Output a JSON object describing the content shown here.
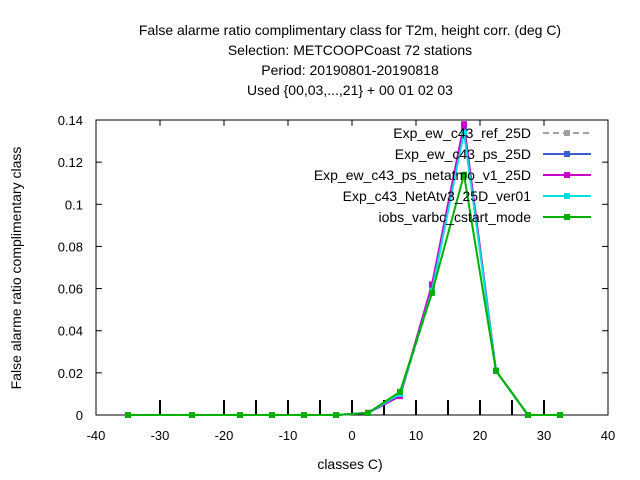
{
  "chart_data": {
    "type": "line",
    "title_lines": [
      "False alarme ratio complimentary class  for T2m, height corr. (deg C)",
      "Selection: METCOOPCoast     72 stations",
      "Period: 20190801-20190818",
      "Used {00,03,...,21} + 00 01 02 03"
    ],
    "xlabel": "classes C)",
    "ylabel": "False alarme ratio complimentary class",
    "xlim": [
      -40,
      40
    ],
    "ylim": [
      0,
      0.14
    ],
    "xticks": [
      -40,
      -30,
      -20,
      -10,
      0,
      10,
      20,
      30,
      40
    ],
    "yticks": [
      0,
      0.02,
      0.04,
      0.06,
      0.08,
      0.1,
      0.12,
      0.14
    ],
    "xtick_labels": [
      "-40",
      "-30",
      "-20",
      "-10",
      "0",
      "10",
      "20",
      "30",
      "40"
    ],
    "ytick_labels": [
      "0",
      "0.02",
      "0.04",
      "0.06",
      "0.08",
      "0.1",
      "0.12",
      "0.14"
    ],
    "class_boundaries": [
      -30,
      -20,
      -15,
      -10,
      -5,
      0,
      5,
      10,
      15,
      20,
      25,
      30
    ],
    "legend_position": "top-right",
    "grid": false,
    "x": [
      -35,
      -25,
      -17.5,
      -12.5,
      -7.5,
      -2.5,
      2.5,
      7.5,
      12.5,
      17.5,
      22.5,
      27.5,
      32.5
    ],
    "series": [
      {
        "name": "Exp_ew_c43_ref_25D",
        "color": "#a0a0a0",
        "dashed": true,
        "values": [
          0,
          0,
          0,
          0,
          0,
          0,
          0.001,
          0.009,
          0.058,
          0.137,
          0.021,
          0,
          0
        ]
      },
      {
        "name": "Exp_ew_c43_ps_25D",
        "color": "#3a5fcd",
        "dashed": false,
        "values": [
          0,
          0,
          0,
          0,
          0,
          0,
          0.001,
          0.009,
          0.06,
          0.136,
          0.021,
          0,
          0
        ]
      },
      {
        "name": "Exp_ew_c43_ps_netatmo_v1_25D",
        "color": "#cc00cc",
        "dashed": false,
        "values": [
          0,
          0,
          0,
          0,
          0,
          0,
          0.001,
          0.009,
          0.062,
          0.138,
          0.021,
          0,
          0
        ]
      },
      {
        "name": "Exp_c43_NetAtv3_25D_ver01",
        "color": "#00e0e0",
        "dashed": false,
        "values": [
          0,
          0,
          0,
          0,
          0,
          0,
          0.001,
          0.01,
          0.059,
          0.134,
          0.021,
          0,
          0
        ]
      },
      {
        "name": "iobs_varbc_cstart_mode",
        "color": "#00b000",
        "dashed": false,
        "values": [
          0,
          0,
          0,
          0,
          0,
          0,
          0.001,
          0.011,
          0.058,
          0.114,
          0.021,
          0,
          0
        ]
      }
    ]
  }
}
